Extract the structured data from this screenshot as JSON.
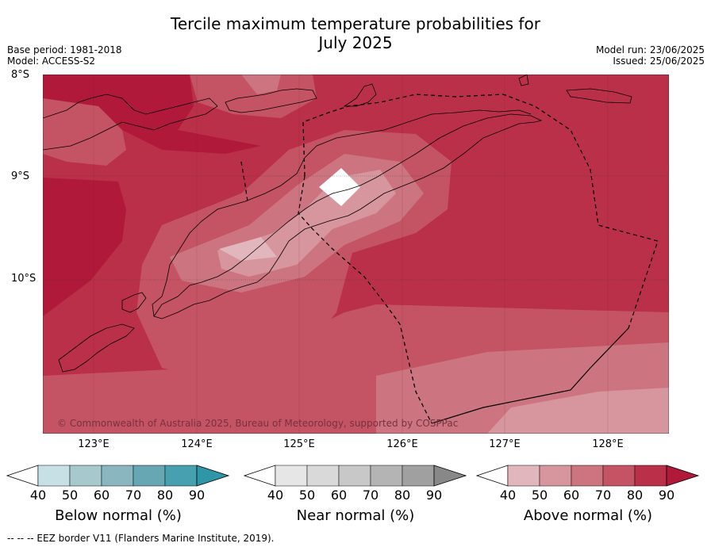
{
  "title_line1": "Tercile maximum temperature probabilities for",
  "title_line2": "July 2025",
  "base_period": "Base period: 1981-2018",
  "model": "Model: ACCESS-S2",
  "model_run": "Model run: 23/06/2025",
  "issued": "Issued: 25/06/2025",
  "latitude_labels": [
    "8°S",
    "9°S",
    "10°S"
  ],
  "longitude_labels": [
    "123°E",
    "124°E",
    "125°E",
    "126°E",
    "127°E",
    "128°E"
  ],
  "copyright": "© Commonwealth of Australia 2025, Bureau of Meteorology, supported by COSPPac",
  "colorbars": [
    {
      "label": "Below normal (%)",
      "ticks": [
        "40",
        "50",
        "60",
        "70",
        "80",
        "90"
      ],
      "colors": [
        "#ffffff",
        "#c6e0e6",
        "#a7c8cd",
        "#89b6bf",
        "#67a6b3",
        "#47a0b0",
        "#2f96a8"
      ]
    },
    {
      "label": "Near normal (%)",
      "ticks": [
        "40",
        "50",
        "60",
        "70",
        "80",
        "90"
      ],
      "colors": [
        "#ffffff",
        "#e6e6e6",
        "#d9d9d9",
        "#c8c8c8",
        "#b4b4b4",
        "#a0a0a0",
        "#888888"
      ]
    },
    {
      "label": "Above normal (%)",
      "ticks": [
        "40",
        "50",
        "60",
        "70",
        "80",
        "90"
      ],
      "colors": [
        "#ffffff",
        "#e2b6bd",
        "#d7959e",
        "#cc7580",
        "#c45463",
        "#ba3049",
        "#b0193a"
      ]
    }
  ],
  "footer": "--  --  -- EEZ border V11 (Flanders Marine Institute, 2019)."
}
